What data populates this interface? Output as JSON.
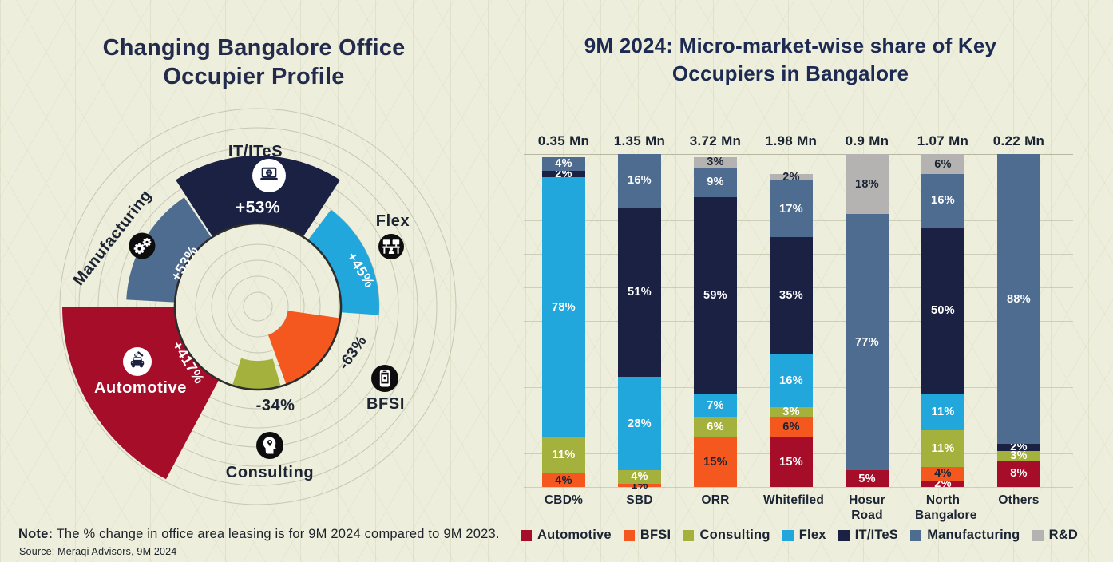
{
  "chart_data": [
    {
      "type": "radial-bar",
      "title": "Changing Bangalore Office Occupier Profile",
      "title_lines": [
        "Changing Bangalore Office",
        "Occupier Profile"
      ],
      "value_meaning": "% change in office area leasing, 9M 2024 vs 9M 2023",
      "series": [
        {
          "sector": "IT/ITeS",
          "change_pct": 53,
          "change_label": "+53%",
          "color": "#1b2143",
          "icon": "laptop-computer-icon"
        },
        {
          "sector": "Flex",
          "change_pct": 45,
          "change_label": "+45%",
          "color": "#21a7dc",
          "icon": "coworking-desk-icon"
        },
        {
          "sector": "BFSI",
          "change_pct": -63,
          "change_label": "-63%",
          "color": "#f4581f",
          "icon": "mobile-banking-icon"
        },
        {
          "sector": "Consulting",
          "change_pct": -34,
          "change_label": "-34%",
          "color": "#a4b23d",
          "icon": "consulting-mind-icon"
        },
        {
          "sector": "Automotive",
          "change_pct": 417,
          "change_label": "+417%",
          "color": "#a50d28",
          "icon": "car-service-icon"
        },
        {
          "sector": "Manufacturing",
          "change_pct": 53,
          "change_label": "+53%",
          "color": "#4d6c8f",
          "icon": "gears-icon"
        }
      ],
      "note_label": "Note:",
      "note_text": " The % change in office area leasing is for 9M 2024 compared to 9M 2023.",
      "source": "Source: Meraqi Advisors, 9M 2024"
    },
    {
      "type": "stacked-bar-100",
      "title": "9M 2024: Micro-market-wise share of Key Occupiers in Bangalore",
      "title_lines": [
        "9M 2024: Micro-market-wise share of Key",
        "Occupiers in Bangalore"
      ],
      "categories": [
        "CBD%",
        "SBD",
        "ORR",
        "Whitefiled",
        "Hosur Road",
        "North Bangalore",
        "Others"
      ],
      "totals": [
        "0.35 Mn",
        "1.35 Mn",
        "3.72 Mn",
        "1.98 Mn",
        "0.9 Mn",
        "1.07 Mn",
        "0.22 Mn"
      ],
      "ylim": [
        0,
        100
      ],
      "grid": "horizontal lines every 10%",
      "legend_position": "bottom",
      "stack_order_bottom_to_top": [
        "Automotive",
        "BFSI",
        "Consulting",
        "Flex",
        "IT/ITeS",
        "Manufacturing",
        "R&D"
      ],
      "series": [
        {
          "name": "Automotive",
          "color": "#a50d28",
          "label_color": "#ffffff",
          "values": [
            0,
            0,
            0,
            15,
            5,
            2,
            8
          ]
        },
        {
          "name": "BFSI",
          "color": "#f4581f",
          "label_color": "#1b2433",
          "values": [
            4,
            1,
            15,
            6,
            0,
            4,
            0
          ]
        },
        {
          "name": "Consulting",
          "color": "#a4b23d",
          "label_color": "#ffffff",
          "values": [
            11,
            4,
            6,
            3,
            0,
            11,
            3
          ]
        },
        {
          "name": "Flex",
          "color": "#21a7dc",
          "label_color": "#ffffff",
          "values": [
            78,
            28,
            7,
            16,
            0,
            11,
            0
          ]
        },
        {
          "name": "IT/ITeS",
          "color": "#1b2143",
          "label_color": "#ffffff",
          "values": [
            2,
            51,
            59,
            35,
            0,
            50,
            2
          ]
        },
        {
          "name": "Manufacturing",
          "color": "#4d6c8f",
          "label_color": "#ffffff",
          "values": [
            4,
            16,
            9,
            17,
            77,
            16,
            88
          ]
        },
        {
          "name": "R&D",
          "color": "#b4b3b1",
          "label_color": "#1b2433",
          "values": [
            0,
            0,
            3,
            2,
            18,
            6,
            0
          ]
        }
      ]
    }
  ]
}
